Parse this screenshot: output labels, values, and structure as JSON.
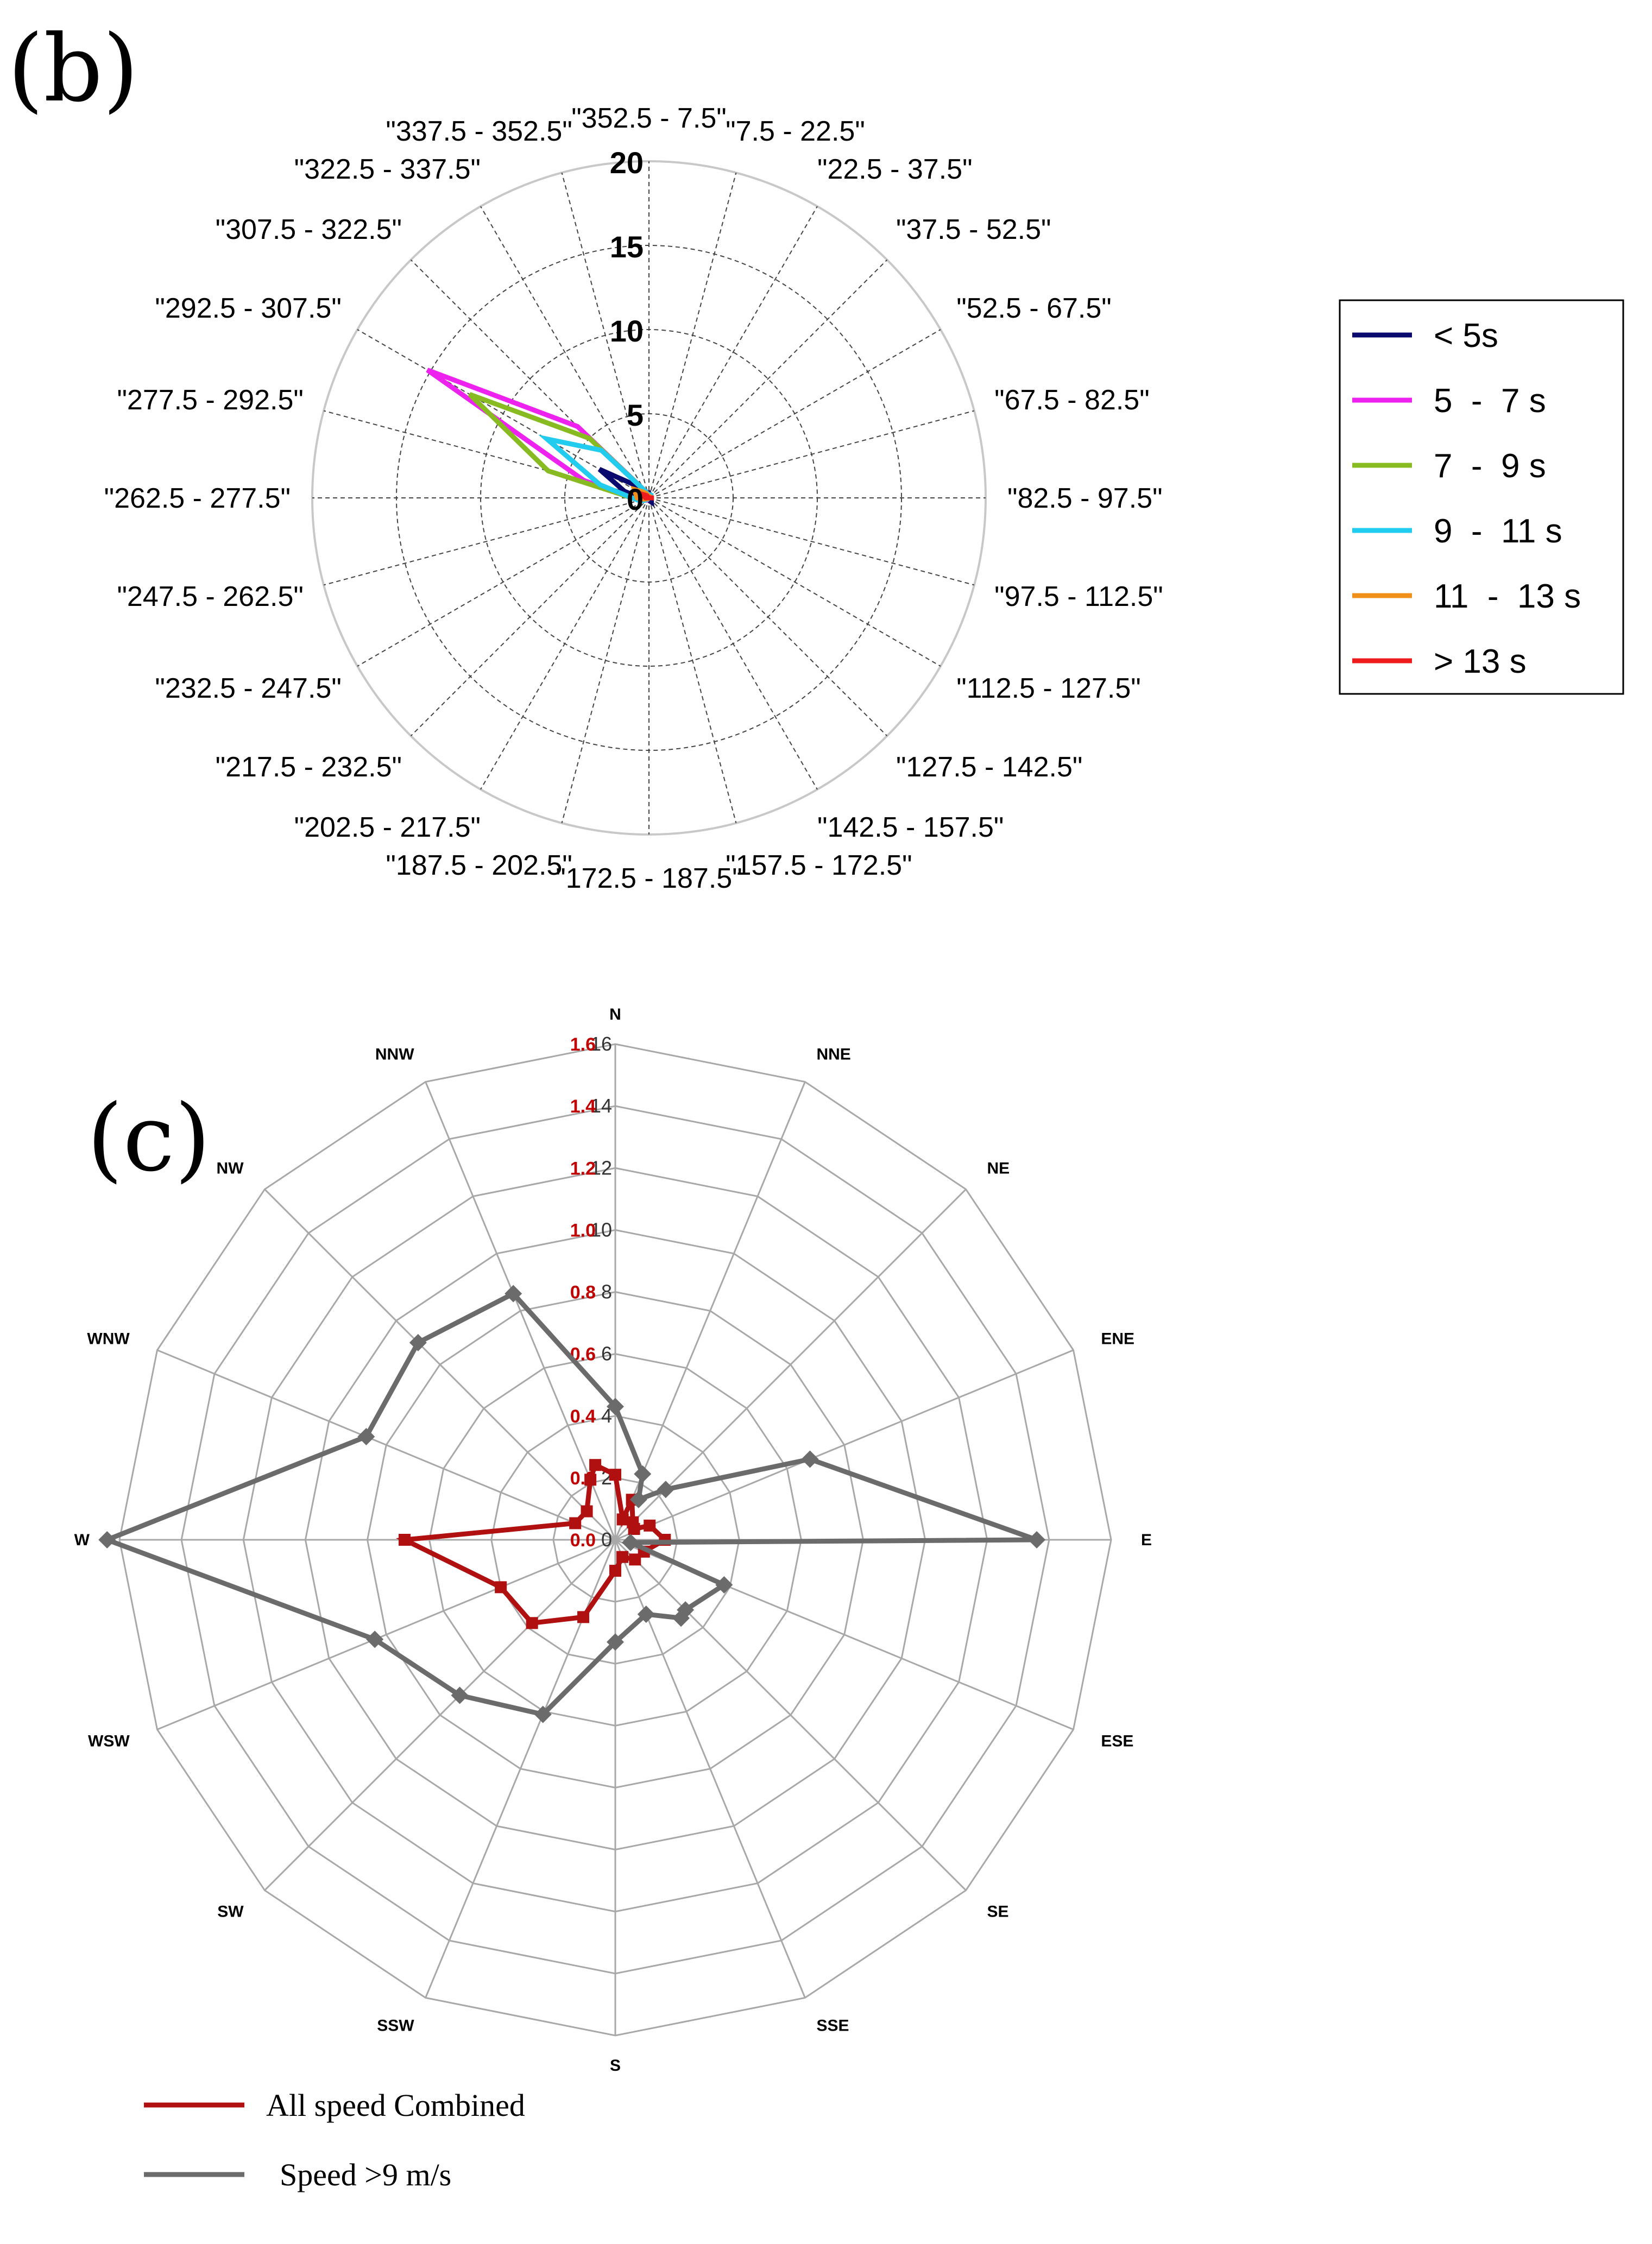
{
  "panels": {
    "b_label": "(b)",
    "c_label": "(c)"
  },
  "chart_data": [
    {
      "type": "radar",
      "title": "",
      "r_range": [
        0,
        20
      ],
      "r_ticks": [
        "0",
        "5",
        "10",
        "15",
        "20"
      ],
      "directions": [
        "\"352.5 - 7.5\"",
        "\"7.5 - 22.5\"",
        "\"22.5 - 37.5\"",
        "\"37.5 - 52.5\"",
        "\"52.5 - 67.5\"",
        "\"67.5 - 82.5\"",
        "\"82.5 - 97.5\"",
        "\"97.5 - 112.5\"",
        "\"112.5 - 127.5\"",
        "\"127.5 - 142.5\"",
        "\"142.5 - 157.5\"",
        "\"157.5 - 172.5\"",
        "\"172.5 - 187.5\"",
        "\"187.5 - 202.5\"",
        "\"202.5 - 217.5\"",
        "\"217.5 - 232.5\"",
        "\"232.5 - 247.5\"",
        "\"247.5 - 262.5\"",
        "\"262.5 - 277.5\"",
        "\"277.5 - 292.5\"",
        "\"292.5 - 307.5\"",
        "\"307.5 - 322.5\"",
        "\"322.5 - 337.5\"",
        "\"337.5 - 352.5\""
      ],
      "series": [
        {
          "name": "< 5s",
          "color": "#0a0a6e",
          "values": [
            0.3,
            0.2,
            0.1,
            0.1,
            0,
            0,
            0.1,
            0,
            0.1,
            0.2,
            0.3,
            0.2,
            0.1,
            0,
            0,
            0,
            0,
            0.2,
            0.5,
            1.5,
            3.4,
            1.0,
            0.5,
            0.3
          ]
        },
        {
          "name": "5  -  7 s",
          "color": "#ee22ee",
          "values": [
            0.2,
            0.2,
            0.2,
            0.1,
            0,
            0,
            0,
            0,
            0,
            0,
            0,
            0,
            0,
            0,
            0,
            0.2,
            0.3,
            0.5,
            1.0,
            4.0,
            15.2,
            6.0,
            0.5,
            0.2
          ]
        },
        {
          "name": "7  -  9 s",
          "color": "#88bb22",
          "values": [
            0.2,
            0.2,
            0.2,
            0.1,
            0,
            0,
            0,
            0,
            0,
            0,
            0,
            0,
            0,
            0,
            0,
            0.1,
            0.3,
            0.5,
            1.0,
            6.2,
            12.3,
            5.0,
            0.5,
            0.2
          ]
        },
        {
          "name": "9  -  11 s",
          "color": "#22ccee",
          "values": [
            0.2,
            0.2,
            0.2,
            0.1,
            0,
            0,
            0,
            0,
            0,
            0,
            0,
            0,
            0,
            0,
            0,
            0.1,
            0.3,
            0.6,
            1.0,
            3.0,
            7.0,
            4.0,
            0.5,
            0.2
          ]
        },
        {
          "name": "11  -  13 s",
          "color": "#f0901a",
          "values": [
            0.1,
            0.1,
            0.1,
            0.1,
            0,
            0,
            0.2,
            0,
            0,
            0,
            0,
            0,
            0,
            0,
            0,
            0,
            0.1,
            0.3,
            0.7,
            0.8,
            1.0,
            0.5,
            0.3,
            0.1
          ]
        },
        {
          "name": "> 13 s",
          "color": "#ee1c1c",
          "values": [
            0,
            0,
            0,
            0,
            0,
            0,
            0.3,
            0,
            0,
            0,
            0,
            0,
            0,
            0,
            0,
            0,
            0,
            0,
            0.2,
            0.3,
            0.4,
            0.2,
            0,
            0
          ]
        }
      ],
      "legend_position": "right"
    },
    {
      "type": "radar",
      "title": "",
      "directions": [
        "N",
        "NNE",
        "NE",
        "ENE",
        "E",
        "ESE",
        "SE",
        "SSE",
        "S",
        "SSW",
        "SW",
        "WSW",
        "W",
        "WNW",
        "NW",
        "NNW"
      ],
      "axes": {
        "speed_gt9": {
          "range": [
            0,
            16
          ],
          "ticks": [
            "0",
            "2",
            "4",
            "6",
            "8",
            "10",
            "12",
            "14",
            "16"
          ]
        },
        "all_combined": {
          "range": [
            0,
            1.6
          ],
          "ticks": [
            "0.0",
            "0.2",
            "0.4",
            "0.6",
            "0.8",
            "1.0",
            "1.2",
            "1.4",
            "1.6"
          ]
        }
      },
      "series": [
        {
          "name": "All speed Combined",
          "axis": "all_combined",
          "color": "#b01010",
          "values": [
            0.21,
            0.14,
            0.08,
            0.12,
            0.16,
            0.1,
            0.09,
            0.06,
            0.1,
            0.27,
            0.38,
            0.4,
            0.68,
            0.14,
            0.13,
            0.21
          ],
          "extra_points": [
            {
              "angle_deg": 345,
              "r": 0.25
            },
            {
              "angle_deg": 20,
              "r": 0.07
            },
            {
              "angle_deg": 60,
              "r": 0.07
            }
          ]
        },
        {
          "name": "Speed >9 m/s",
          "axis": "speed_gt9",
          "color": "#6b6b6b",
          "values": [
            4.3,
            2.3,
            2.3,
            6.8,
            13.6,
            3.8,
            3.2,
            2.6,
            3.3,
            6.1,
            7.1,
            8.4,
            16.4,
            8.7,
            9.0,
            8.6
          ],
          "extra_points": [
            {
              "angle_deg": 30,
              "r": 1.5
            },
            {
              "angle_deg": 100,
              "r": 0.5
            },
            {
              "angle_deg": 140,
              "r": 3.3
            }
          ]
        }
      ],
      "legend_position": "bottom-left"
    }
  ]
}
